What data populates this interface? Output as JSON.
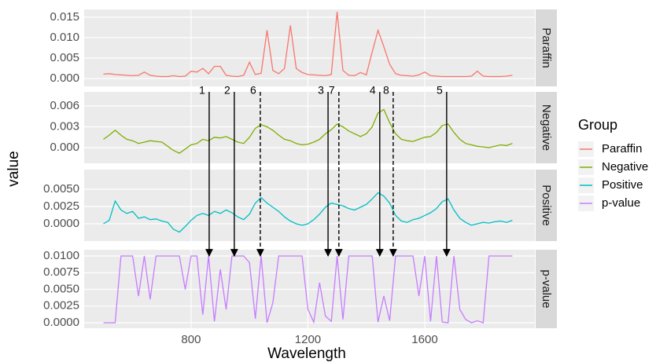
{
  "chart_data": {
    "type": "line",
    "xlabel": "Wavelength",
    "ylabel": "value",
    "legend_title": "Group",
    "legend": "right",
    "grid": true,
    "xlim": [
      434,
      1977
    ],
    "xticks": [
      800,
      1200,
      1600
    ],
    "x": [
      500,
      520,
      540,
      560,
      580,
      600,
      620,
      640,
      660,
      680,
      700,
      720,
      740,
      760,
      780,
      800,
      820,
      840,
      860,
      880,
      900,
      920,
      940,
      960,
      980,
      1000,
      1020,
      1040,
      1060,
      1080,
      1100,
      1120,
      1140,
      1160,
      1180,
      1200,
      1220,
      1240,
      1260,
      1280,
      1300,
      1320,
      1340,
      1360,
      1380,
      1400,
      1420,
      1440,
      1460,
      1480,
      1500,
      1520,
      1540,
      1560,
      1580,
      1600,
      1620,
      1640,
      1660,
      1680,
      1700,
      1720,
      1740,
      1760,
      1780,
      1800,
      1820,
      1840,
      1860,
      1880,
      1900
    ],
    "series": [
      {
        "name": "Paraffin",
        "color": "#F8766D",
        "ylim": [
          -0.0019,
          0.0169
        ],
        "yticks": [
          {
            "value": 0,
            "label": "0.000"
          },
          0.005,
          {
            "value": 0.01,
            "label": "0.010"
          },
          0.015
        ],
        "values": [
          0.0011,
          0.0012,
          0.001,
          0.0009,
          0.0008,
          0.0007,
          0.0008,
          0.0016,
          0.0008,
          0.0006,
          0.0005,
          0.0005,
          0.0007,
          0.0005,
          0.0006,
          0.0018,
          0.0016,
          0.0025,
          0.0012,
          0.003,
          0.003,
          0.0008,
          0.0006,
          0.0005,
          0.0008,
          0.004,
          0.001,
          0.0013,
          0.0118,
          0.002,
          0.0012,
          0.0025,
          0.013,
          0.0025,
          0.0015,
          0.001,
          0.0009,
          0.0008,
          0.0007,
          0.001,
          0.0163,
          0.002,
          0.0008,
          0.0007,
          0.0015,
          0.0009,
          0.0065,
          0.0118,
          0.0078,
          0.0035,
          0.0012,
          0.0008,
          0.0007,
          0.0006,
          0.0009,
          0.0016,
          0.0007,
          0.0006,
          0.0005,
          0.0005,
          0.0005,
          0.0005,
          0.0005,
          0.0006,
          0.0018,
          0.0006,
          0.0005,
          0.0005,
          0.0005,
          0.0006,
          0.0008
        ]
      },
      {
        "name": "Negative",
        "color": "#7CAE00",
        "ylim": [
          -0.00226,
          0.00804
        ],
        "yticks": [
          {
            "value": 0,
            "label": "0.000"
          },
          0.003,
          0.006
        ],
        "values": [
          0.0012,
          0.0018,
          0.0025,
          0.0018,
          0.0012,
          0.001,
          0.0006,
          0.0008,
          0.001,
          0.0009,
          0.0008,
          0.0002,
          -0.0004,
          -0.0008,
          -0.0002,
          0.0004,
          0.0006,
          0.0012,
          0.001,
          0.0015,
          0.0014,
          0.0016,
          0.0012,
          0.0008,
          0.0006,
          0.0015,
          0.0028,
          0.0033,
          0.003,
          0.0025,
          0.0018,
          0.0012,
          0.001,
          0.0006,
          0.0004,
          0.0005,
          0.0008,
          0.0012,
          0.002,
          0.0026,
          0.0034,
          0.003,
          0.0024,
          0.002,
          0.0016,
          0.002,
          0.003,
          0.005,
          0.0055,
          0.0036,
          0.002,
          0.0012,
          0.001,
          0.0009,
          0.0012,
          0.0015,
          0.0016,
          0.0022,
          0.0032,
          0.0034,
          0.0022,
          0.0012,
          0.0006,
          0.0004,
          0.0002,
          0.0001,
          0.0,
          0.0002,
          0.0004,
          0.0003,
          0.0006
        ]
      },
      {
        "name": "Positive",
        "color": "#00BFC4",
        "ylim": [
          -0.0025,
          0.00784
        ],
        "yticks": [
          {
            "value": 0,
            "label": "0.0000"
          },
          {
            "value": 0.0025,
            "label": "0.0025"
          },
          {
            "value": 0.005,
            "label": "0.0050"
          }
        ],
        "values": [
          0.0,
          0.0005,
          0.0033,
          0.002,
          0.0015,
          0.0018,
          0.0008,
          0.001,
          0.0006,
          0.0007,
          0.0004,
          0.0002,
          -0.0008,
          -0.0012,
          -0.0004,
          0.0005,
          0.0012,
          0.0015,
          0.0012,
          0.0018,
          0.0015,
          0.002,
          0.0016,
          0.001,
          0.0006,
          0.0014,
          0.003,
          0.0038,
          0.003,
          0.0024,
          0.0018,
          0.001,
          0.0004,
          0.0,
          -0.0002,
          0.0,
          0.0006,
          0.0014,
          0.0024,
          0.003,
          0.0028,
          0.0026,
          0.0022,
          0.002,
          0.0024,
          0.0028,
          0.0036,
          0.0045,
          0.004,
          0.003,
          0.0012,
          0.0004,
          0.0002,
          0.0006,
          0.0008,
          0.0012,
          0.0016,
          0.0022,
          0.0032,
          0.0036,
          0.002,
          0.0008,
          0.0002,
          -0.0002,
          0.0,
          0.0002,
          0.0001,
          0.0003,
          0.0004,
          0.0002,
          0.0005
        ]
      },
      {
        "name": "p-value",
        "color": "#C77CFF",
        "ylim": [
          -0.00082,
          0.01094
        ],
        "yticks": [
          {
            "value": 0,
            "label": "0.0000"
          },
          {
            "value": 0.0025,
            "label": "0.0025"
          },
          {
            "value": 0.005,
            "label": "0.0050"
          },
          {
            "value": 0.0075,
            "label": "0.0075"
          },
          {
            "value": 0.01,
            "label": "0.0100"
          }
        ],
        "values": [
          0,
          0,
          0,
          0.01,
          0.01,
          0.01,
          0.004,
          0.01,
          0.0035,
          0.01,
          0.01,
          0.01,
          0.01,
          0.01,
          0.005,
          0.01,
          0.01,
          0.0012,
          0.01,
          0.0002,
          0.008,
          0.002,
          0.01,
          0.01,
          0.01,
          0.009,
          0.0006,
          0.01,
          0,
          0.003,
          0.01,
          0.01,
          0.01,
          0.01,
          0.01,
          0.002,
          0.0001,
          0.006,
          0.001,
          0.0002,
          0.01,
          0.0005,
          0.01,
          0.01,
          0.01,
          0.01,
          0.01,
          0.0001,
          0.004,
          0.0003,
          0.01,
          0.01,
          0.01,
          0.01,
          0.004,
          0.01,
          0.0002,
          0.01,
          0.0001,
          0,
          0.01,
          0.002,
          0.0005,
          0,
          0.0003,
          0,
          0.01,
          0.01,
          0.01,
          0.01,
          0.01
        ]
      }
    ],
    "annotations": [
      {
        "label": "1",
        "x": 862,
        "dashed": false
      },
      {
        "label": "2",
        "x": 948,
        "dashed": false
      },
      {
        "label": "6",
        "x": 1037,
        "dashed": true
      },
      {
        "label": "3",
        "x": 1269,
        "dashed": false
      },
      {
        "label": "7",
        "x": 1306,
        "dashed": true
      },
      {
        "label": "4",
        "x": 1446,
        "dashed": false
      },
      {
        "label": "8",
        "x": 1492,
        "dashed": true
      },
      {
        "label": "5",
        "x": 1675,
        "dashed": false
      }
    ]
  }
}
